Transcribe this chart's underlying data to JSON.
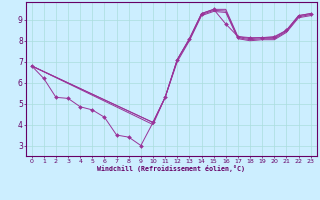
{
  "xlabel": "Windchill (Refroidissement éolien,°C)",
  "background_color": "#cceeff",
  "grid_color": "#aadddd",
  "line_color": "#993399",
  "spine_color": "#660066",
  "xlim": [
    -0.5,
    23.5
  ],
  "ylim": [
    2.5,
    9.85
  ],
  "xticks": [
    0,
    1,
    2,
    3,
    4,
    5,
    6,
    7,
    8,
    9,
    10,
    11,
    12,
    13,
    14,
    15,
    16,
    17,
    18,
    19,
    20,
    21,
    22,
    23
  ],
  "yticks": [
    3,
    4,
    5,
    6,
    7,
    8,
    9
  ],
  "line1_x": [
    0,
    1,
    2,
    3,
    4,
    5,
    6,
    7,
    8,
    9,
    10,
    11,
    12,
    13,
    14,
    15,
    16,
    17,
    18,
    19,
    20,
    21,
    22,
    23
  ],
  "line1_y": [
    6.8,
    6.2,
    5.3,
    5.25,
    4.85,
    4.7,
    4.35,
    3.5,
    3.4,
    3.0,
    4.1,
    5.3,
    7.1,
    8.1,
    9.3,
    9.5,
    8.8,
    8.2,
    8.15,
    8.15,
    8.2,
    8.5,
    9.2,
    9.3
  ],
  "line2_x": [
    0,
    10,
    11,
    12,
    13,
    14,
    15,
    16,
    17,
    18,
    19,
    20,
    21,
    22,
    23
  ],
  "line2_y": [
    6.8,
    4.1,
    5.3,
    7.1,
    8.1,
    9.3,
    9.5,
    9.5,
    8.2,
    8.1,
    8.15,
    8.15,
    8.5,
    9.2,
    9.3
  ],
  "line3_x": [
    0,
    10,
    11,
    12,
    13,
    14,
    15,
    16,
    17,
    18,
    19,
    20,
    21,
    22,
    23
  ],
  "line3_y": [
    6.8,
    4.1,
    5.3,
    7.1,
    8.05,
    9.25,
    9.45,
    9.42,
    8.15,
    8.05,
    8.1,
    8.1,
    8.45,
    9.15,
    9.25
  ],
  "line4_x": [
    0,
    10,
    11,
    12,
    13,
    14,
    15,
    16,
    17,
    18,
    19,
    20,
    21,
    22,
    23
  ],
  "line4_y": [
    6.8,
    4.0,
    5.3,
    7.0,
    8.0,
    9.2,
    9.4,
    9.35,
    8.1,
    8.0,
    8.05,
    8.05,
    8.4,
    9.1,
    9.2
  ]
}
